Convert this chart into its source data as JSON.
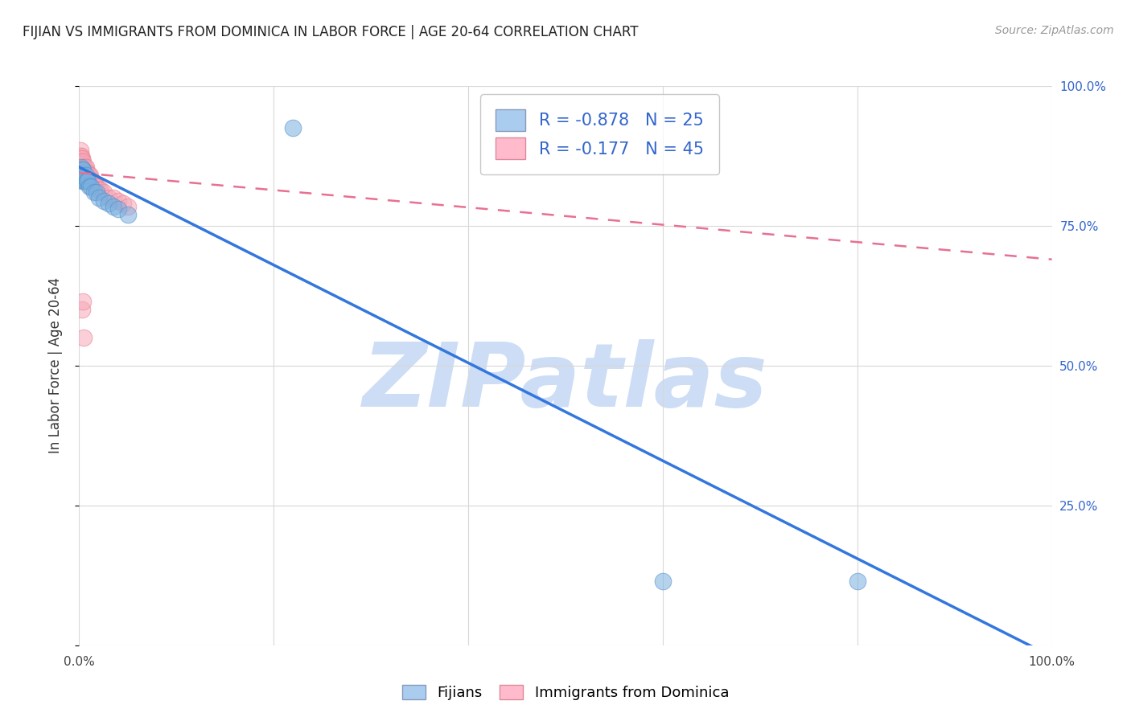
{
  "title": "FIJIAN VS IMMIGRANTS FROM DOMINICA IN LABOR FORCE | AGE 20-64 CORRELATION CHART",
  "source": "Source: ZipAtlas.com",
  "ylabel": "In Labor Force | Age 20-64",
  "xlim": [
    0,
    1.0
  ],
  "ylim": [
    0,
    1.0
  ],
  "xticks": [
    0.0,
    0.2,
    0.4,
    0.6,
    0.8,
    1.0
  ],
  "yticks": [
    0.0,
    0.25,
    0.5,
    0.75,
    1.0
  ],
  "background_color": "#ffffff",
  "grid_color": "#d8d8d8",
  "watermark_text": "ZIPatlas",
  "watermark_color": "#ccddf5",
  "fijian_color": "#7ab0e0",
  "fijian_edge_color": "#5590c8",
  "dominica_color": "#f7a8b8",
  "dominica_edge_color": "#e88090",
  "fijian_R": -0.878,
  "fijian_N": 25,
  "dominica_R": -0.177,
  "dominica_N": 45,
  "fijian_line_color": "#3377dd",
  "dominica_line_color": "#e87090",
  "fijian_line_x0": 0.0,
  "fijian_line_y0": 0.855,
  "fijian_line_x1": 1.0,
  "fijian_line_y1": -0.02,
  "dominica_line_x0": 0.0,
  "dominica_line_y0": 0.845,
  "dominica_line_x1": 1.0,
  "dominica_line_y1": 0.69,
  "fijian_scatter_x": [
    0.001,
    0.002,
    0.002,
    0.003,
    0.003,
    0.004,
    0.004,
    0.005,
    0.006,
    0.007,
    0.008,
    0.009,
    0.01,
    0.012,
    0.015,
    0.018,
    0.02,
    0.025,
    0.03,
    0.035,
    0.04,
    0.05,
    0.22,
    0.6,
    0.8
  ],
  "fijian_scatter_y": [
    0.84,
    0.855,
    0.84,
    0.85,
    0.83,
    0.84,
    0.85,
    0.83,
    0.83,
    0.84,
    0.83,
    0.83,
    0.82,
    0.82,
    0.81,
    0.81,
    0.8,
    0.795,
    0.79,
    0.785,
    0.78,
    0.77,
    0.925,
    0.115,
    0.115
  ],
  "dominica_scatter_x": [
    0.001,
    0.001,
    0.001,
    0.002,
    0.002,
    0.002,
    0.002,
    0.003,
    0.003,
    0.003,
    0.003,
    0.003,
    0.004,
    0.004,
    0.004,
    0.005,
    0.005,
    0.006,
    0.006,
    0.007,
    0.007,
    0.008,
    0.009,
    0.009,
    0.01,
    0.011,
    0.012,
    0.013,
    0.014,
    0.015,
    0.016,
    0.017,
    0.018,
    0.019,
    0.02,
    0.022,
    0.025,
    0.03,
    0.035,
    0.04,
    0.045,
    0.05,
    0.003,
    0.004,
    0.005
  ],
  "dominica_scatter_y": [
    0.875,
    0.885,
    0.87,
    0.87,
    0.865,
    0.86,
    0.875,
    0.865,
    0.87,
    0.855,
    0.845,
    0.86,
    0.855,
    0.865,
    0.84,
    0.85,
    0.855,
    0.845,
    0.855,
    0.845,
    0.855,
    0.845,
    0.84,
    0.845,
    0.84,
    0.84,
    0.83,
    0.83,
    0.83,
    0.825,
    0.825,
    0.82,
    0.82,
    0.815,
    0.815,
    0.815,
    0.81,
    0.8,
    0.8,
    0.795,
    0.79,
    0.785,
    0.6,
    0.615,
    0.55
  ]
}
